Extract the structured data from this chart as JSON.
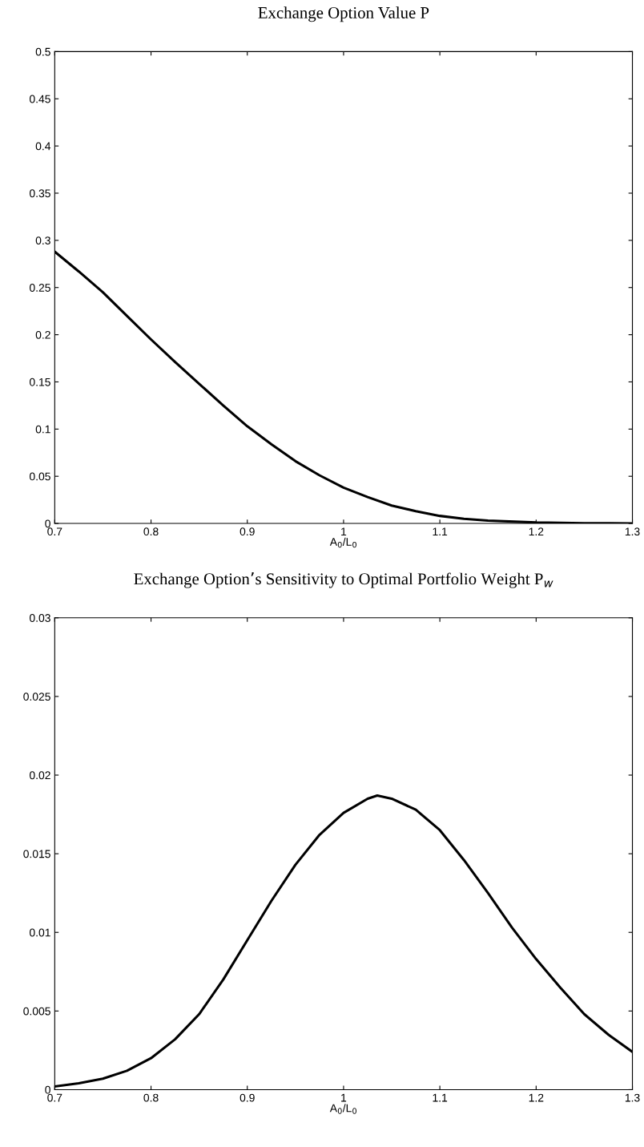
{
  "chart_data": [
    {
      "type": "line",
      "title": "Exchange Option Value P",
      "xlabel": "A$_{0}$/L$_{0}$",
      "series": [
        {
          "color": "#000000",
          "x": [
            0.7,
            0.725,
            0.75,
            0.775,
            0.8,
            0.825,
            0.85,
            0.875,
            0.9,
            0.925,
            0.95,
            0.975,
            1,
            1.025,
            1.05,
            1.075,
            1.1,
            1.125,
            1.15,
            1.2,
            1.25,
            1.3
          ],
          "values": [
            0.288,
            0.267,
            0.245,
            0.22,
            0.195,
            0.171,
            0.148,
            0.125,
            0.103,
            0.084,
            0.066,
            0.051,
            0.038,
            0.028,
            0.019,
            0.013,
            0.008,
            0.005,
            0.003,
            0.001,
            0.0003,
            0.0001
          ]
        }
      ],
      "xlim": [
        0.7,
        1.3
      ],
      "xticks": [
        0.7,
        0.8,
        0.9,
        1,
        1.1,
        1.2,
        1.3
      ],
      "ylim": [
        0,
        0.5
      ],
      "yticks": [
        0,
        0.05,
        0.1,
        0.15,
        0.2,
        0.25,
        0.3,
        0.35,
        0.4,
        0.45,
        0.5
      ],
      "grid": false,
      "legend": false,
      "marker": "none",
      "line_style": "solid"
    },
    {
      "type": "line",
      "title": "Exchange Option’s Sensitivity to Optimal Portfolio Weight P$_{w}$",
      "xlabel": "A$_{0}$/L$_{0}$",
      "series": [
        {
          "color": "#000000",
          "x": [
            0.7,
            0.725,
            0.75,
            0.775,
            0.8,
            0.825,
            0.85,
            0.875,
            0.9,
            0.925,
            0.95,
            0.975,
            1,
            1.025,
            1.035,
            1.05,
            1.075,
            1.1,
            1.125,
            1.15,
            1.175,
            1.2,
            1.225,
            1.25,
            1.275,
            1.3
          ],
          "values": [
            0.0002,
            0.0004,
            0.0007,
            0.0012,
            0.002,
            0.0032,
            0.0048,
            0.007,
            0.0095,
            0.012,
            0.0143,
            0.0162,
            0.0176,
            0.0185,
            0.0187,
            0.0185,
            0.0178,
            0.0165,
            0.0146,
            0.0125,
            0.0103,
            0.0083,
            0.0065,
            0.0048,
            0.0035,
            0.0024
          ]
        }
      ],
      "xlim": [
        0.7,
        1.3
      ],
      "xticks": [
        0.7,
        0.8,
        0.9,
        1,
        1.1,
        1.2,
        1.3
      ],
      "ylim": [
        0,
        0.03
      ],
      "yticks": [
        0,
        0.005,
        0.01,
        0.015,
        0.02,
        0.025,
        0.03
      ],
      "grid": false,
      "legend": false,
      "marker": "none",
      "line_style": "solid"
    }
  ]
}
